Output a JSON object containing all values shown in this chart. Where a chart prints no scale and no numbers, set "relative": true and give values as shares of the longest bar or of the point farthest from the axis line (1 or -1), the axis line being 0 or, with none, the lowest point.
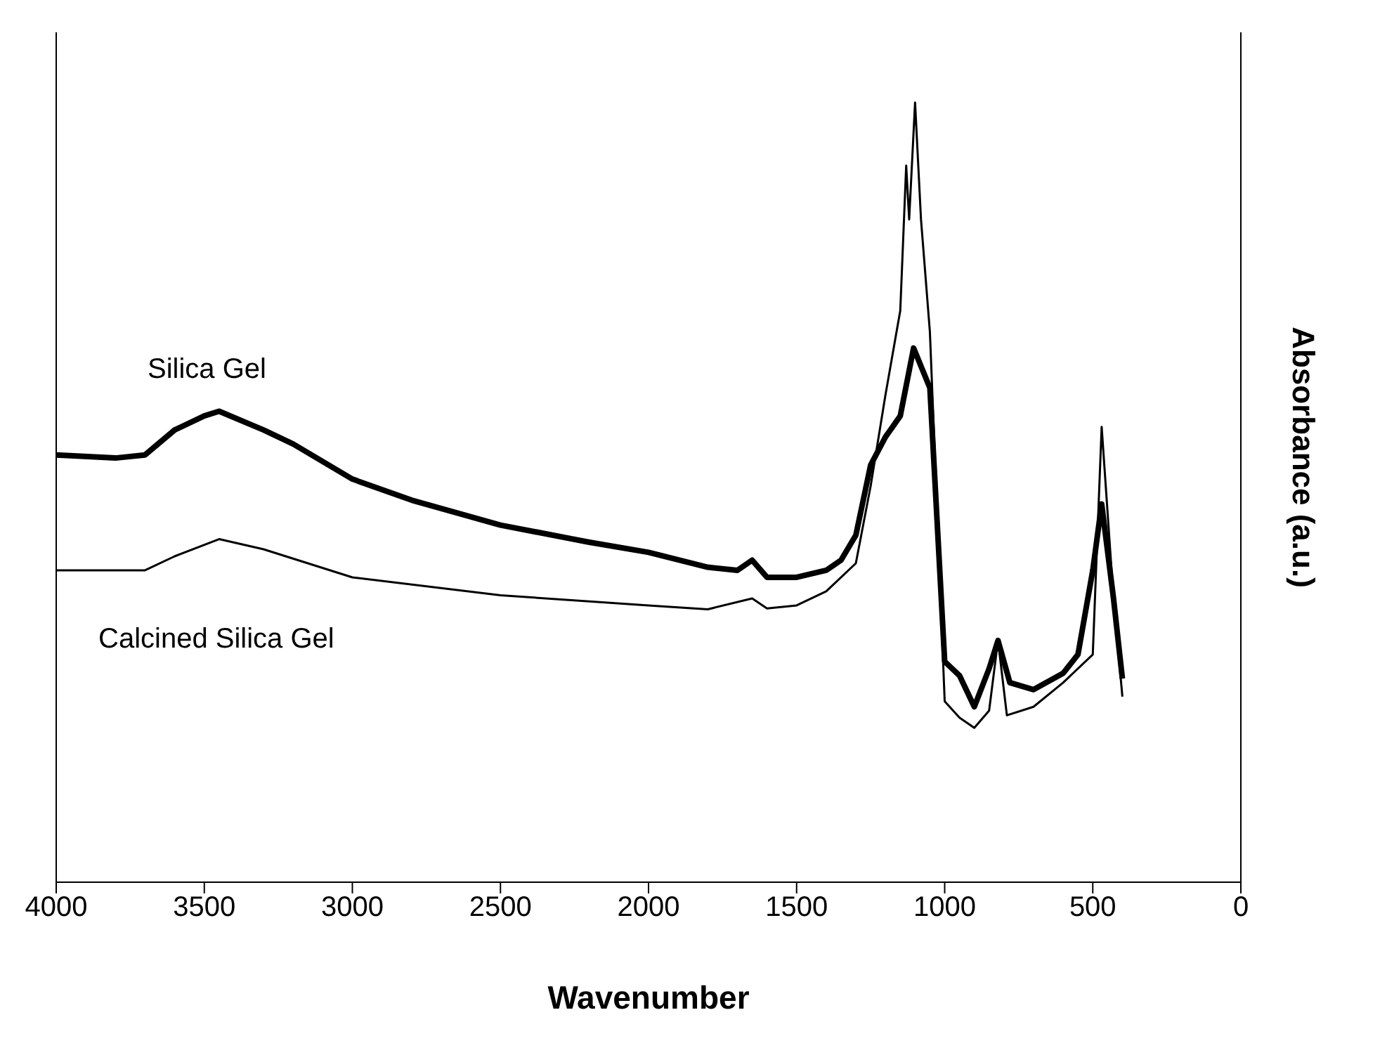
{
  "chart_data": {
    "type": "line",
    "relative": true,
    "xlabel": "Wavenumber",
    "ylabel": "Absorbance (a.u.)",
    "xlim": [
      4000,
      0
    ],
    "xticks": [
      4000,
      3500,
      3000,
      2500,
      2000,
      1500,
      1000,
      500,
      0
    ],
    "marker": "none",
    "line_style": "solid",
    "series": [
      {
        "name": "Silica Gel",
        "color": "#000000",
        "x": [
          4000,
          3800,
          3700,
          3600,
          3500,
          3450,
          3300,
          3200,
          3000,
          2800,
          2500,
          2200,
          2000,
          1800,
          1700,
          1650,
          1600,
          1500,
          1400,
          1350,
          1300,
          1250,
          1200,
          1150,
          1105,
          1050,
          1000,
          950,
          900,
          850,
          820,
          780,
          700,
          600,
          550,
          500,
          470,
          430,
          400
        ],
        "values": [
          0.548,
          0.544,
          0.548,
          0.58,
          0.598,
          0.604,
          0.58,
          0.562,
          0.517,
          0.49,
          0.458,
          0.436,
          0.423,
          0.404,
          0.4,
          0.413,
          0.391,
          0.391,
          0.4,
          0.413,
          0.445,
          0.535,
          0.571,
          0.598,
          0.685,
          0.634,
          0.283,
          0.265,
          0.225,
          0.274,
          0.31,
          0.256,
          0.247,
          0.268,
          0.292,
          0.4,
          0.485,
          0.364,
          0.261
        ]
      },
      {
        "name": "Calcined Silica Gel",
        "color": "#000000",
        "x": [
          4000,
          3700,
          3600,
          3450,
          3300,
          3000,
          2500,
          2000,
          1800,
          1650,
          1600,
          1500,
          1400,
          1300,
          1250,
          1200,
          1150,
          1130,
          1120,
          1100,
          1080,
          1050,
          1000,
          950,
          900,
          850,
          820,
          790,
          700,
          600,
          500,
          470,
          430,
          400
        ],
        "values": [
          0.4,
          0.4,
          0.418,
          0.44,
          0.427,
          0.391,
          0.368,
          0.355,
          0.35,
          0.364,
          0.351,
          0.355,
          0.373,
          0.409,
          0.508,
          0.625,
          0.733,
          0.919,
          0.85,
          1,
          0.85,
          0.706,
          0.232,
          0.211,
          0.198,
          0.22,
          0.31,
          0.214,
          0.225,
          0.256,
          0.292,
          0.584,
          0.364,
          0.238
        ]
      }
    ]
  }
}
